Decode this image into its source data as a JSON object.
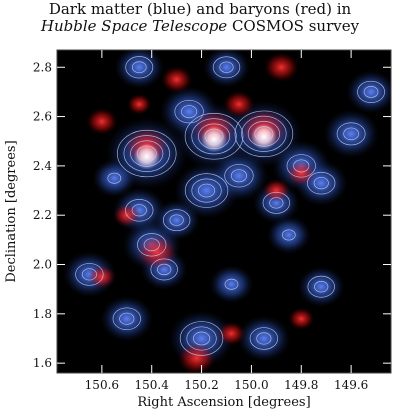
{
  "chart_data": {
    "type": "heatmap",
    "title_line1": "Dark matter (blue) and baryons (red) in",
    "title_line2_italic": "Hubble Space Telescope",
    "title_line2_rest": " COSMOS survey",
    "xlabel": "Right Ascension [degrees]",
    "ylabel": "Declination [degrees]",
    "x_ticks": [
      "150.6",
      "150.4",
      "150.2",
      "150.0",
      "149.8",
      "149.6"
    ],
    "x_tick_values": [
      150.6,
      150.4,
      150.2,
      150.0,
      149.8,
      149.6
    ],
    "y_ticks": [
      "1.6",
      "1.8",
      "2.0",
      "2.2",
      "2.4",
      "2.6",
      "2.8"
    ],
    "y_tick_values": [
      1.6,
      1.8,
      2.0,
      2.2,
      2.4,
      2.6,
      2.8
    ],
    "xlim": [
      150.78,
      149.44
    ],
    "ylim": [
      1.56,
      2.87
    ],
    "colors": {
      "background": "#000000",
      "dark_matter": "#2a4fb0",
      "baryons": "#ff1c1c",
      "overlap": "#ffffff",
      "contours": "#c8d4ff"
    },
    "dark_matter_peaks": [
      {
        "x": 150.42,
        "y": 2.45,
        "w": 1.0
      },
      {
        "x": 150.15,
        "y": 2.52,
        "w": 0.9
      },
      {
        "x": 149.95,
        "y": 2.53,
        "w": 0.9
      },
      {
        "x": 150.25,
        "y": 2.62,
        "w": 0.6
      },
      {
        "x": 150.05,
        "y": 2.36,
        "w": 0.6
      },
      {
        "x": 150.18,
        "y": 2.3,
        "w": 0.7
      },
      {
        "x": 149.8,
        "y": 2.4,
        "w": 0.6
      },
      {
        "x": 149.6,
        "y": 2.53,
        "w": 0.55
      },
      {
        "x": 149.52,
        "y": 2.7,
        "w": 0.45
      },
      {
        "x": 150.45,
        "y": 2.22,
        "w": 0.5
      },
      {
        "x": 150.4,
        "y": 2.08,
        "w": 0.6
      },
      {
        "x": 150.65,
        "y": 1.96,
        "w": 0.5
      },
      {
        "x": 150.3,
        "y": 2.18,
        "w": 0.4
      },
      {
        "x": 149.9,
        "y": 2.25,
        "w": 0.4
      },
      {
        "x": 149.72,
        "y": 2.33,
        "w": 0.5
      },
      {
        "x": 150.2,
        "y": 1.7,
        "w": 0.7
      },
      {
        "x": 149.95,
        "y": 1.7,
        "w": 0.5
      },
      {
        "x": 150.5,
        "y": 1.78,
        "w": 0.5
      },
      {
        "x": 149.72,
        "y": 1.91,
        "w": 0.4
      },
      {
        "x": 150.45,
        "y": 2.8,
        "w": 0.45
      },
      {
        "x": 150.1,
        "y": 2.8,
        "w": 0.4
      },
      {
        "x": 149.85,
        "y": 2.12,
        "w": 0.35
      },
      {
        "x": 150.08,
        "y": 1.92,
        "w": 0.35
      },
      {
        "x": 150.35,
        "y": 1.98,
        "w": 0.4
      },
      {
        "x": 150.55,
        "y": 2.35,
        "w": 0.35
      }
    ],
    "baryon_peaks": [
      {
        "x": 150.42,
        "y": 2.48,
        "w": 0.9
      },
      {
        "x": 150.15,
        "y": 2.55,
        "w": 0.9
      },
      {
        "x": 149.95,
        "y": 2.55,
        "w": 1.0
      },
      {
        "x": 150.38,
        "y": 2.05,
        "w": 0.8
      },
      {
        "x": 150.22,
        "y": 1.62,
        "w": 0.7
      },
      {
        "x": 149.88,
        "y": 2.8,
        "w": 0.6
      },
      {
        "x": 150.3,
        "y": 2.75,
        "w": 0.5
      },
      {
        "x": 150.6,
        "y": 2.58,
        "w": 0.5
      },
      {
        "x": 150.05,
        "y": 2.65,
        "w": 0.5
      },
      {
        "x": 149.8,
        "y": 2.37,
        "w": 0.45
      },
      {
        "x": 150.5,
        "y": 2.2,
        "w": 0.4
      },
      {
        "x": 150.6,
        "y": 1.95,
        "w": 0.4
      },
      {
        "x": 149.9,
        "y": 2.3,
        "w": 0.4
      },
      {
        "x": 150.08,
        "y": 1.72,
        "w": 0.4
      },
      {
        "x": 149.8,
        "y": 1.78,
        "w": 0.35
      },
      {
        "x": 150.45,
        "y": 2.65,
        "w": 0.3
      }
    ]
  }
}
